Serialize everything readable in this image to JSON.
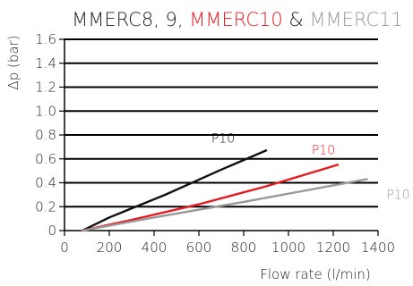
{
  "chart_data": {
    "type": "line",
    "title_parts": [
      {
        "text": "MMERC8, 9, ",
        "color": "#222222"
      },
      {
        "text": "MMERC10",
        "color": "#e8181c"
      },
      {
        "text": " & ",
        "color": "#222222"
      },
      {
        "text": "MMERC11",
        "color": "#999999"
      }
    ],
    "xlabel": "Flow rate (l/min)",
    "ylabel": "Δp (bar)",
    "xlim": [
      0,
      1400
    ],
    "ylim": [
      0,
      1.6
    ],
    "xticks": [
      0,
      200,
      400,
      600,
      800,
      1000,
      1200,
      1400
    ],
    "yticks": [
      0,
      0.2,
      0.4,
      0.6,
      0.8,
      1.0,
      1.2,
      1.4,
      1.6
    ],
    "xtick_labels": [
      "0",
      "200",
      "400",
      "600",
      "800",
      "1000",
      "1200",
      "1400"
    ],
    "ytick_labels": [
      "0",
      "0.2",
      "0.4",
      "0.6",
      "0.8",
      "1.0",
      "1.2",
      "1.4",
      "1.6"
    ],
    "grid": "horizontal",
    "series": [
      {
        "name": "P10",
        "color": "#111111",
        "points": [
          [
            80,
            0
          ],
          [
            200,
            0.11
          ],
          [
            450,
            0.3
          ],
          [
            700,
            0.51
          ],
          [
            900,
            0.67
          ]
        ]
      },
      {
        "name": "P10",
        "color": "#e8181c",
        "points": [
          [
            80,
            0
          ],
          [
            300,
            0.09
          ],
          [
            600,
            0.22
          ],
          [
            900,
            0.37
          ],
          [
            1220,
            0.55
          ]
        ]
      },
      {
        "name": "P10",
        "color": "#999999",
        "points": [
          [
            80,
            0
          ],
          [
            400,
            0.11
          ],
          [
            800,
            0.24
          ],
          [
            1350,
            0.43
          ]
        ]
      }
    ]
  }
}
